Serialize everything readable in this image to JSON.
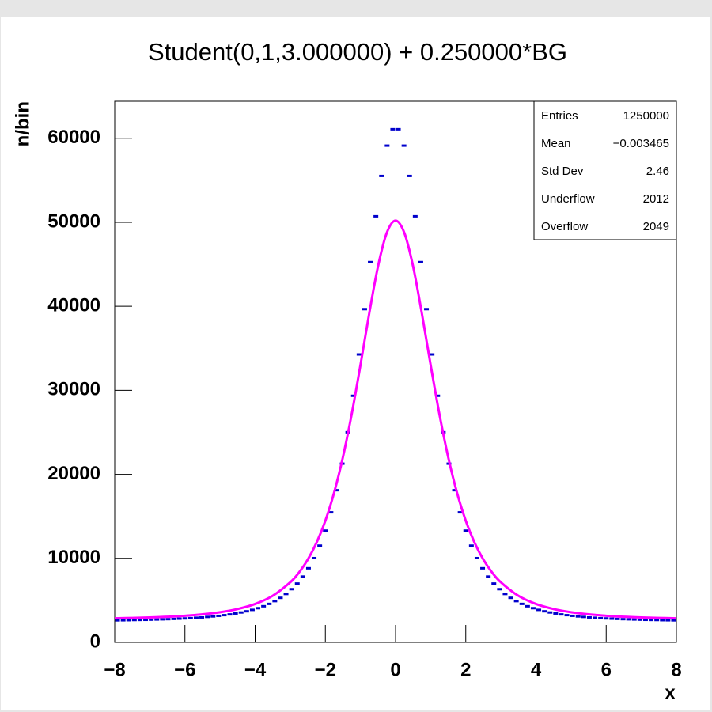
{
  "chart_data": {
    "type": "histogram",
    "title": "Student(0,1,3.000000) + 0.250000*BG",
    "xlabel": "x",
    "ylabel": "n/bin",
    "color": "#0000cc",
    "bins": [
      -8,
      -7.84,
      -7.68,
      -7.52,
      -7.36,
      -7.2,
      -7.04,
      -6.88,
      -6.72,
      -6.56,
      -6.4,
      -6.24,
      -6.08,
      -5.92,
      -5.76,
      -5.6,
      -5.44,
      -5.28,
      -5.12,
      -4.96,
      -4.8,
      -4.64,
      -4.48,
      -4.32,
      -4.16,
      -4,
      -3.84,
      -3.68,
      -3.52,
      -3.36,
      -3.2,
      -3.04,
      -2.88,
      -2.72,
      -2.56,
      -2.4,
      -2.24,
      -2.08,
      -1.92,
      -1.76,
      -1.6,
      -1.44,
      -1.28,
      -1.12,
      -0.96,
      -0.8,
      -0.64,
      -0.48,
      -0.32,
      -0.16,
      0,
      0.16,
      0.32,
      0.48,
      0.64,
      0.8,
      0.96,
      1.12,
      1.28,
      1.44,
      1.6,
      1.76,
      1.92,
      2.08,
      2.24,
      2.4,
      2.56,
      2.72,
      2.88,
      3.04,
      3.2,
      3.36,
      3.52,
      3.68,
      3.84,
      4,
      4.16,
      4.32,
      4.48,
      4.64,
      4.8,
      4.96,
      5.12,
      5.28,
      5.44,
      5.6,
      5.76,
      5.92,
      6.08,
      6.24,
      6.4,
      6.56,
      6.72,
      6.88,
      7.04,
      7.2,
      7.36,
      7.52,
      7.68,
      7.84,
      8
    ],
    "values": [
      2620,
      2630,
      2640,
      2660,
      2670,
      2680,
      2700,
      2720,
      2740,
      2760,
      2790,
      2820,
      2850,
      2880,
      2930,
      2970,
      3030,
      3090,
      3160,
      3240,
      3330,
      3440,
      3560,
      3700,
      3870,
      4070,
      4300,
      4580,
      4910,
      5300,
      5760,
      6330,
      7000,
      7830,
      8820,
      10030,
      11510,
      13300,
      15480,
      18110,
      21270,
      25010,
      29350,
      34270,
      39660,
      45260,
      50710,
      55510,
      59120,
      61070,
      61070,
      59120,
      55510,
      50710,
      45260,
      39660,
      34270,
      29350,
      25010,
      21270,
      18110,
      15480,
      13300,
      11510,
      10030,
      8820,
      7830,
      7000,
      6330,
      5760,
      5300,
      4910,
      4580,
      4300,
      4070,
      3870,
      3700,
      3560,
      3440,
      3330,
      3240,
      3160,
      3090,
      3030,
      2970,
      2930,
      2880,
      2850,
      2820,
      2790,
      2760,
      2740,
      2720,
      2700,
      2680,
      2670,
      2660,
      2640,
      2630,
      2620
    ],
    "fit": {
      "color": "#ff00ff",
      "x": [
        -8,
        -7.5,
        -7,
        -6.5,
        -6,
        -5.5,
        -5,
        -4.5,
        -4,
        -3.5,
        -3,
        -2.75,
        -2.5,
        -2.25,
        -2,
        -1.75,
        -1.5,
        -1.25,
        -1,
        -0.75,
        -0.5,
        -0.25,
        0,
        0.25,
        0.5,
        0.75,
        1,
        1.25,
        1.5,
        1.75,
        2,
        2.25,
        2.5,
        2.75,
        3,
        3.5,
        4,
        4.5,
        5,
        5.5,
        6,
        6.5,
        7,
        7.5,
        8
      ],
      "values": [
        2860,
        2910,
        2970,
        3050,
        3170,
        3340,
        3590,
        3970,
        4570,
        5540,
        7150,
        8320,
        9860,
        11870,
        14480,
        17830,
        22040,
        27150,
        33000,
        39140,
        44740,
        48740,
        50200,
        48740,
        44740,
        39140,
        33000,
        27150,
        22040,
        17830,
        14480,
        11870,
        9860,
        8320,
        7150,
        5540,
        4570,
        3970,
        3590,
        3340,
        3170,
        3050,
        2970,
        2910,
        2860
      ]
    },
    "xlim": [
      -8,
      8
    ],
    "ylim": [
      0,
      64400
    ],
    "xticks": [
      {
        "value": -8,
        "label": "−8"
      },
      {
        "value": -6,
        "label": "−6"
      },
      {
        "value": -4,
        "label": "−4"
      },
      {
        "value": -2,
        "label": "−2"
      },
      0,
      2,
      4,
      6,
      8
    ],
    "yticks": [
      0,
      10000,
      20000,
      30000,
      40000,
      50000,
      60000
    ],
    "stats": [
      {
        "label": "Entries",
        "value": "1250000"
      },
      {
        "label": "Mean",
        "value": "−0.003465"
      },
      {
        "label": "Std Dev",
        "value": "2.46"
      },
      {
        "label": "Underflow",
        "value": "2012"
      },
      {
        "label": "Overflow",
        "value": "2049"
      }
    ]
  }
}
